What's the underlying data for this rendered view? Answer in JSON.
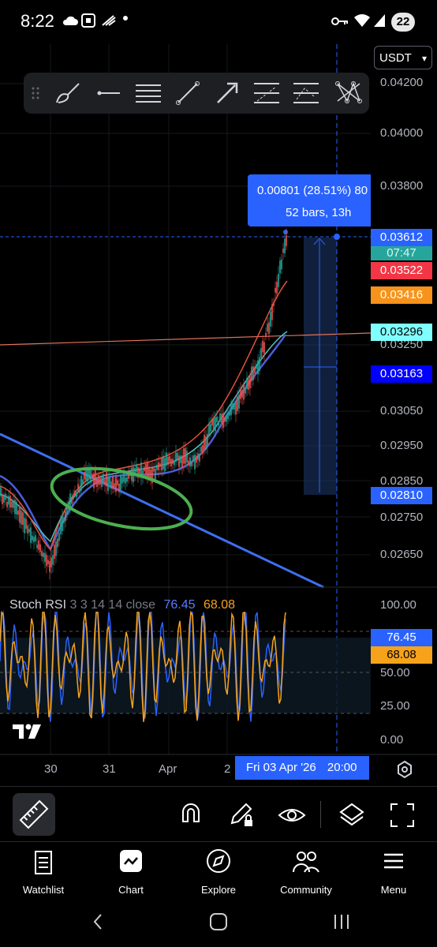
{
  "status_bar": {
    "time": "8:22",
    "notification_count": "22"
  },
  "currency": "USDT",
  "price_axis": {
    "ticks": [
      "0.04200",
      "0.04000",
      "0.03800",
      "0.03250",
      "0.03050",
      "0.02950",
      "0.02850",
      "0.02750",
      "0.02650"
    ],
    "labels": [
      {
        "text": "0.03612",
        "color": "#2962ff"
      },
      {
        "text": "07:47",
        "color": "#26a69a"
      },
      {
        "text": "0.03522",
        "color": "#f23645"
      },
      {
        "text": "0.03416",
        "color": "#f7931a"
      },
      {
        "text": "0.03296",
        "color": "#7fffff"
      },
      {
        "text": "0.03163",
        "color": "#0000ff"
      },
      {
        "text": "0.02810",
        "color": "#2962ff"
      }
    ]
  },
  "measure": {
    "line1": "0.00801 (28.51%) 80",
    "line2": "52 bars, 13h"
  },
  "stoch_rsi": {
    "name": "Stoch RSI",
    "params": "3 3 14 14 close",
    "k_value": "76.45",
    "d_value": "68.08",
    "k_color": "#2962ff",
    "d_color": "#f7a21b",
    "ticks": [
      "100.00",
      "50.00",
      "25.00",
      "0.00"
    ]
  },
  "time_axis": {
    "ticks": [
      "30",
      "31",
      "Apr",
      "2"
    ],
    "crosshair": "Fri 03 Apr '26",
    "crosshair_time": "20:00"
  },
  "nav": [
    {
      "label": "Watchlist",
      "icon": "watchlist-icon"
    },
    {
      "label": "Chart",
      "icon": "chart-icon"
    },
    {
      "label": "Explore",
      "icon": "compass-icon"
    },
    {
      "label": "Community",
      "icon": "community-icon"
    },
    {
      "label": "Menu",
      "icon": "menu-icon"
    }
  ]
}
